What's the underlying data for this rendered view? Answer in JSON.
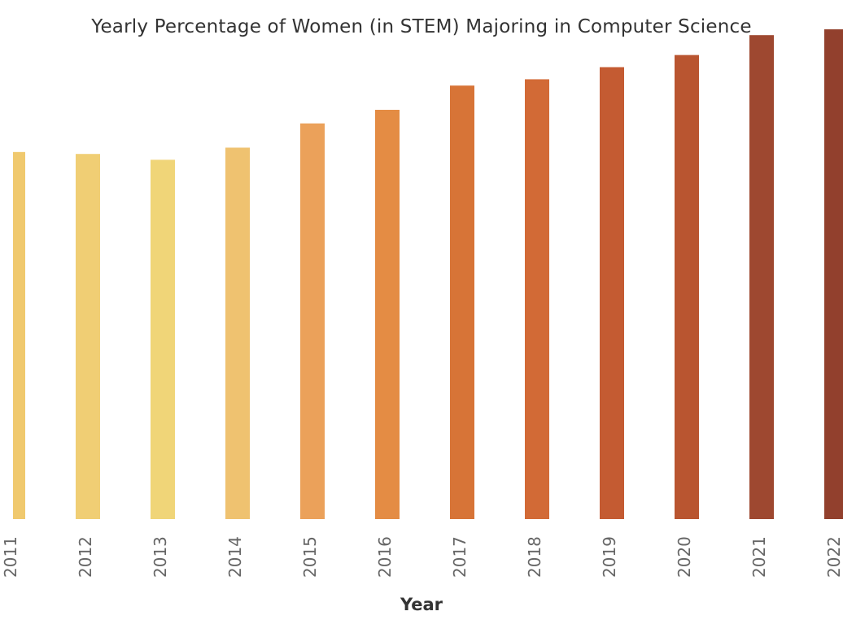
{
  "chart_data": {
    "type": "bar",
    "title": "Yearly Percentage of Women (in STEM) Majoring in Computer Science",
    "xlabel": "Year",
    "ylabel": "",
    "ylim": [
      0,
      100
    ],
    "grid": false,
    "categories": [
      "2011",
      "2012",
      "2013",
      "2014",
      "2015",
      "2016",
      "2017",
      "2018",
      "2019",
      "2020",
      "2021",
      "2022"
    ],
    "values": [
      75.7,
      75.3,
      74.1,
      76.6,
      81.6,
      84.4,
      89.4,
      90.7,
      93.2,
      95.7,
      99.8,
      101.0
    ],
    "colors": [
      "#f0c96e",
      "#f0ce74",
      "#f0d578",
      "#efc270",
      "#eba15a",
      "#e48c44",
      "#d77437",
      "#d26a36",
      "#c45b32",
      "#b95530",
      "#9e4830",
      "#92402d"
    ]
  }
}
